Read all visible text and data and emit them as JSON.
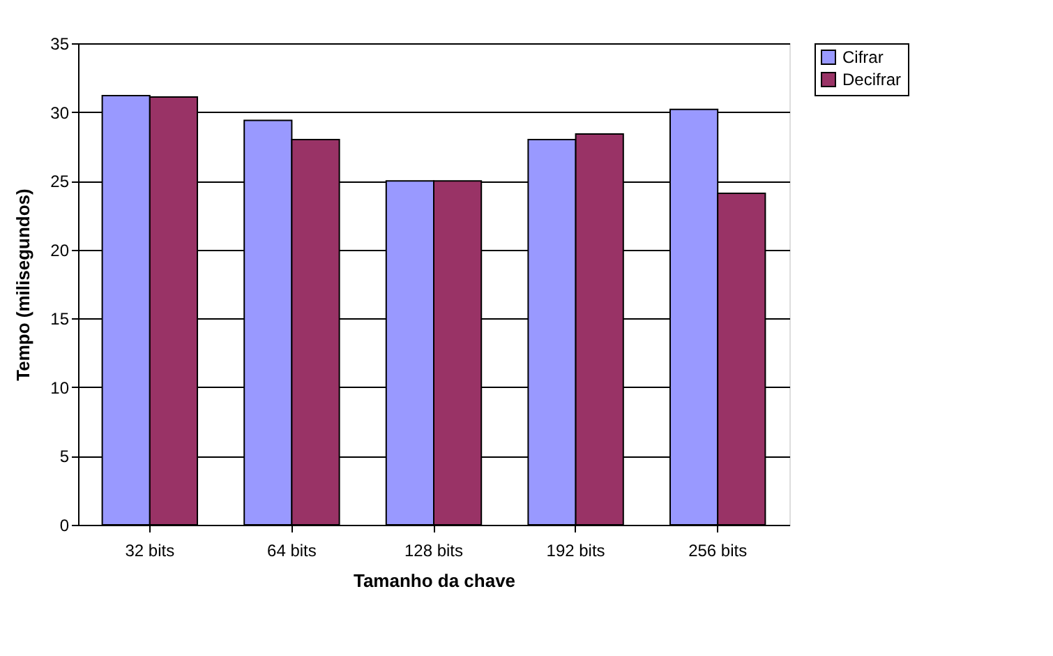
{
  "chart_data": {
    "type": "bar",
    "xlabel": "Tamanho da chave",
    "ylabel": "Tempo (milisegundos)",
    "categories": [
      "32 bits",
      "64 bits",
      "128 bits",
      "192 bits",
      "256 bits"
    ],
    "series": [
      {
        "name": "Cifrar",
        "color": "#9999ff",
        "values": [
          31.2,
          29.4,
          25.0,
          28.0,
          30.2
        ]
      },
      {
        "name": "Decifrar",
        "color": "#993366",
        "values": [
          31.1,
          28.0,
          25.0,
          28.4,
          24.1
        ]
      }
    ],
    "ylim": [
      0,
      35
    ],
    "yticks": [
      0,
      5,
      10,
      15,
      20,
      25,
      30,
      35
    ],
    "grid": "y",
    "legend": "right"
  }
}
